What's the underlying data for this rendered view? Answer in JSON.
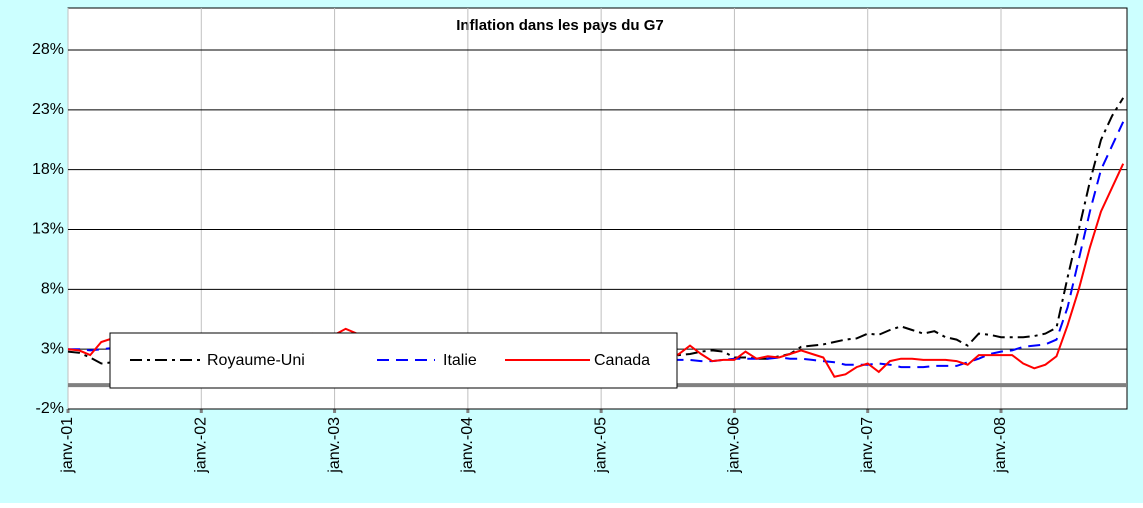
{
  "chart_data": {
    "type": "line",
    "title": "Inflation dans les pays du G7",
    "categories": [
      "janv.-01",
      null,
      null,
      null,
      null,
      null,
      null,
      null,
      null,
      null,
      null,
      null,
      "janv.-02",
      null,
      null,
      null,
      null,
      null,
      null,
      null,
      null,
      null,
      null,
      null,
      "janv.-03",
      null,
      null,
      null,
      null,
      null,
      null,
      null,
      null,
      null,
      null,
      null,
      "janv.-04",
      null,
      null,
      null,
      null,
      null,
      null,
      null,
      null,
      null,
      null,
      null,
      "janv.-05",
      null,
      null,
      null,
      null,
      null,
      null,
      null,
      null,
      null,
      null,
      null,
      "janv.-06",
      null,
      null,
      null,
      null,
      null,
      null,
      null,
      null,
      null,
      null,
      null,
      "janv.-07",
      null,
      null,
      null,
      null,
      null,
      null,
      null,
      null,
      null,
      null,
      null,
      "janv.-08",
      null,
      null,
      null,
      null,
      null,
      null,
      null,
      null,
      null,
      null,
      null
    ],
    "series": [
      {
        "name": "Royaume-Uni",
        "color": "#000000",
        "dash": "dashdot",
        "values": [
          2.8,
          2.7,
          2.3,
          1.8,
          1.9,
          2.0,
          2.1,
          2.2,
          2.2,
          2.1,
          1.9,
          1.8,
          1.6,
          1.7,
          1.8,
          1.9,
          1.8,
          1.7,
          1.6,
          1.5,
          1.5,
          1.6,
          1.8,
          1.9,
          2.0,
          2.1,
          2.1,
          1.9,
          1.8,
          1.7,
          1.6,
          1.7,
          1.8,
          1.7,
          1.6,
          1.5,
          1.4,
          1.3,
          1.3,
          1.2,
          1.4,
          1.6,
          1.6,
          1.5,
          1.4,
          1.6,
          1.7,
          1.8,
          2.0,
          2.1,
          2.0,
          2.1,
          2.2,
          2.3,
          2.4,
          2.5,
          2.6,
          2.8,
          2.9,
          2.8,
          2.3,
          2.3,
          2.2,
          2.2,
          2.4,
          2.6,
          3.2,
          3.3,
          3.4,
          3.6,
          3.8,
          3.9,
          4.3,
          4.2,
          4.6,
          4.9,
          4.6,
          4.3,
          4.5,
          4.0,
          3.8,
          3.3,
          4.3,
          4.2,
          4.0,
          4.0,
          4.0,
          4.1,
          4.3,
          4.8,
          9.0,
          13.0,
          17.0,
          20.5,
          22.5,
          24.0
        ]
      },
      {
        "name": "Italie",
        "color": "#0000ff",
        "dash": "dash",
        "values": [
          3.0,
          3.0,
          2.9,
          3.0,
          3.1,
          3.0,
          2.9,
          2.8,
          2.6,
          2.6,
          2.4,
          2.4,
          2.4,
          2.5,
          2.5,
          2.5,
          2.4,
          2.3,
          2.3,
          2.4,
          2.6,
          2.7,
          2.8,
          2.8,
          2.8,
          2.6,
          2.7,
          2.7,
          2.6,
          2.6,
          2.7,
          2.7,
          2.8,
          2.6,
          2.6,
          2.5,
          2.2,
          2.3,
          2.2,
          2.3,
          2.3,
          2.4,
          2.2,
          2.3,
          2.1,
          2.0,
          1.9,
          2.0,
          1.9,
          2.0,
          1.9,
          1.8,
          1.9,
          2.1,
          2.1,
          2.1,
          2.1,
          2.0,
          2.0,
          2.1,
          2.2,
          2.2,
          2.2,
          2.2,
          2.3,
          2.2,
          2.2,
          2.1,
          2.0,
          1.9,
          1.7,
          1.7,
          1.7,
          1.8,
          1.7,
          1.5,
          1.5,
          1.5,
          1.6,
          1.6,
          1.6,
          1.9,
          2.2,
          2.6,
          2.8,
          2.9,
          3.2,
          3.3,
          3.4,
          3.8,
          6.5,
          10.5,
          14.5,
          18.0,
          20.0,
          22.0
        ]
      },
      {
        "name": "Canada",
        "color": "#ff0000",
        "dash": "solid",
        "values": [
          3.0,
          2.9,
          2.5,
          3.6,
          3.9,
          3.3,
          2.6,
          2.8,
          2.6,
          1.9,
          0.7,
          0.7,
          1.3,
          1.5,
          1.8,
          1.7,
          1.0,
          1.3,
          2.1,
          2.5,
          2.3,
          3.2,
          4.3,
          3.9,
          4.2,
          4.7,
          4.3,
          3.0,
          2.8,
          2.6,
          2.2,
          2.0,
          2.2,
          1.6,
          1.6,
          2.0,
          1.3,
          0.7,
          0.7,
          1.7,
          2.5,
          2.5,
          2.3,
          1.8,
          1.8,
          2.3,
          2.4,
          2.1,
          1.9,
          2.1,
          2.3,
          2.3,
          1.6,
          1.7,
          2.0,
          2.6,
          3.3,
          2.6,
          2.0,
          2.1,
          2.1,
          2.8,
          2.2,
          2.4,
          2.3,
          2.6,
          2.9,
          2.6,
          2.3,
          0.7,
          0.9,
          1.5,
          1.8,
          1.1,
          2.0,
          2.2,
          2.2,
          2.1,
          2.1,
          2.1,
          2.0,
          1.7,
          2.5,
          2.5,
          2.5,
          2.5,
          1.8,
          1.4,
          1.7,
          2.4,
          5.0,
          8.0,
          11.5,
          14.5,
          16.5,
          18.5
        ]
      }
    ],
    "ylim": [
      -2,
      28
    ],
    "yticks": [
      {
        "value": -2,
        "label": "-2%"
      },
      {
        "value": 3,
        "label": "3%"
      },
      {
        "value": 8,
        "label": "8%"
      },
      {
        "value": 13,
        "label": "13%"
      },
      {
        "value": 18,
        "label": "18%"
      },
      {
        "value": 23,
        "label": "23%"
      },
      {
        "value": 28,
        "label": "28%"
      }
    ],
    "grid": true,
    "legend": "bottom"
  }
}
